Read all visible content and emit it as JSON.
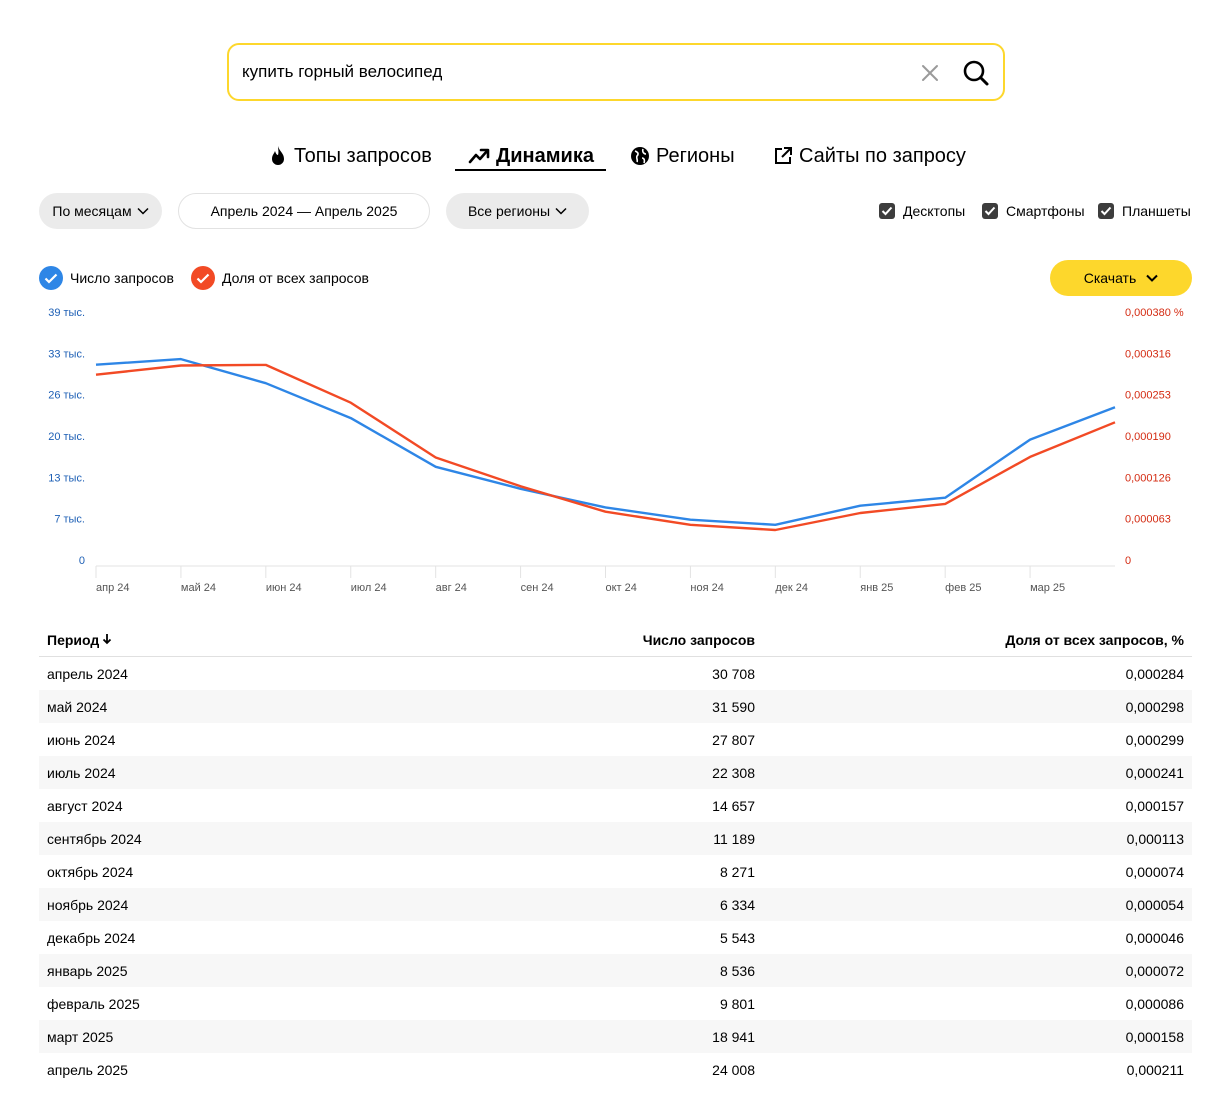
{
  "search": {
    "query": "купить горный велосипед"
  },
  "tabs": [
    {
      "label": "Топы запросов",
      "icon": "fire-icon"
    },
    {
      "label": "Динамика",
      "icon": "trend-up-icon",
      "active": true
    },
    {
      "label": "Регионы",
      "icon": "globe-icon"
    },
    {
      "label": "Сайты по запросу",
      "icon": "external-link-icon"
    }
  ],
  "filters": {
    "grouping": "По месяцам",
    "period": "Апрель 2024 — Апрель 2025",
    "regions": "Все регионы",
    "devices": [
      {
        "label": "Десктопы",
        "checked": true
      },
      {
        "label": "Смартфоны",
        "checked": true
      },
      {
        "label": "Планшеты",
        "checked": true
      }
    ]
  },
  "legend": {
    "count_label": "Число запросов",
    "share_label": "Доля от всех запросов",
    "count_color": "#2e86e6",
    "share_color": "#f24a25"
  },
  "download_label": "Скачать",
  "chart_data": {
    "type": "line",
    "x": [
      "апр 24",
      "май 24",
      "июн 24",
      "июл 24",
      "авг 24",
      "сен 24",
      "окт 24",
      "ноя 24",
      "дек 24",
      "янв 25",
      "фев 25",
      "мар 25",
      "апр 25"
    ],
    "x_tick_labels": [
      "апр 24",
      "май 24",
      "июн 24",
      "июл 24",
      "авг 24",
      "сен 24",
      "окт 24",
      "ноя 24",
      "дек 24",
      "янв 25",
      "фев 25",
      "мар 25"
    ],
    "left_axis": {
      "ticks": [
        "0",
        "7 тыс.",
        "13 тыс.",
        "20 тыс.",
        "26 тыс.",
        "33 тыс.",
        "39 тыс."
      ],
      "range": [
        0,
        39000
      ]
    },
    "right_axis": {
      "ticks": [
        "0",
        "0,000063",
        "0,000126",
        "0,000190",
        "0,000253",
        "0,000316",
        "0,000380 %"
      ],
      "range": [
        0,
        0.00038
      ]
    },
    "series": [
      {
        "name": "Число запросов",
        "axis": "left",
        "color": "#2e86e6",
        "values": [
          30708,
          31590,
          27807,
          22308,
          14657,
          11189,
          8271,
          6334,
          5543,
          8536,
          9801,
          18941,
          24008
        ]
      },
      {
        "name": "Доля от всех запросов",
        "axis": "right",
        "color": "#f24a25",
        "values": [
          0.000284,
          0.000298,
          0.000299,
          0.000241,
          0.000157,
          0.000113,
          7.4e-05,
          5.4e-05,
          4.6e-05,
          7.2e-05,
          8.6e-05,
          0.000158,
          0.000211
        ]
      }
    ]
  },
  "table": {
    "headers": [
      "Период",
      "Число запросов",
      "Доля от всех запросов, %"
    ],
    "rows": [
      [
        "апрель 2024",
        "30 708",
        "0,000284"
      ],
      [
        "май 2024",
        "31 590",
        "0,000298"
      ],
      [
        "июнь 2024",
        "27 807",
        "0,000299"
      ],
      [
        "июль 2024",
        "22 308",
        "0,000241"
      ],
      [
        "август 2024",
        "14 657",
        "0,000157"
      ],
      [
        "сентябрь 2024",
        "11 189",
        "0,000113"
      ],
      [
        "октябрь 2024",
        "8 271",
        "0,000074"
      ],
      [
        "ноябрь 2024",
        "6 334",
        "0,000054"
      ],
      [
        "декабрь 2024",
        "5 543",
        "0,000046"
      ],
      [
        "январь 2025",
        "8 536",
        "0,000072"
      ],
      [
        "февраль 2025",
        "9 801",
        "0,000086"
      ],
      [
        "март 2025",
        "18 941",
        "0,000158"
      ],
      [
        "апрель 2025",
        "24 008",
        "0,000211"
      ]
    ]
  }
}
